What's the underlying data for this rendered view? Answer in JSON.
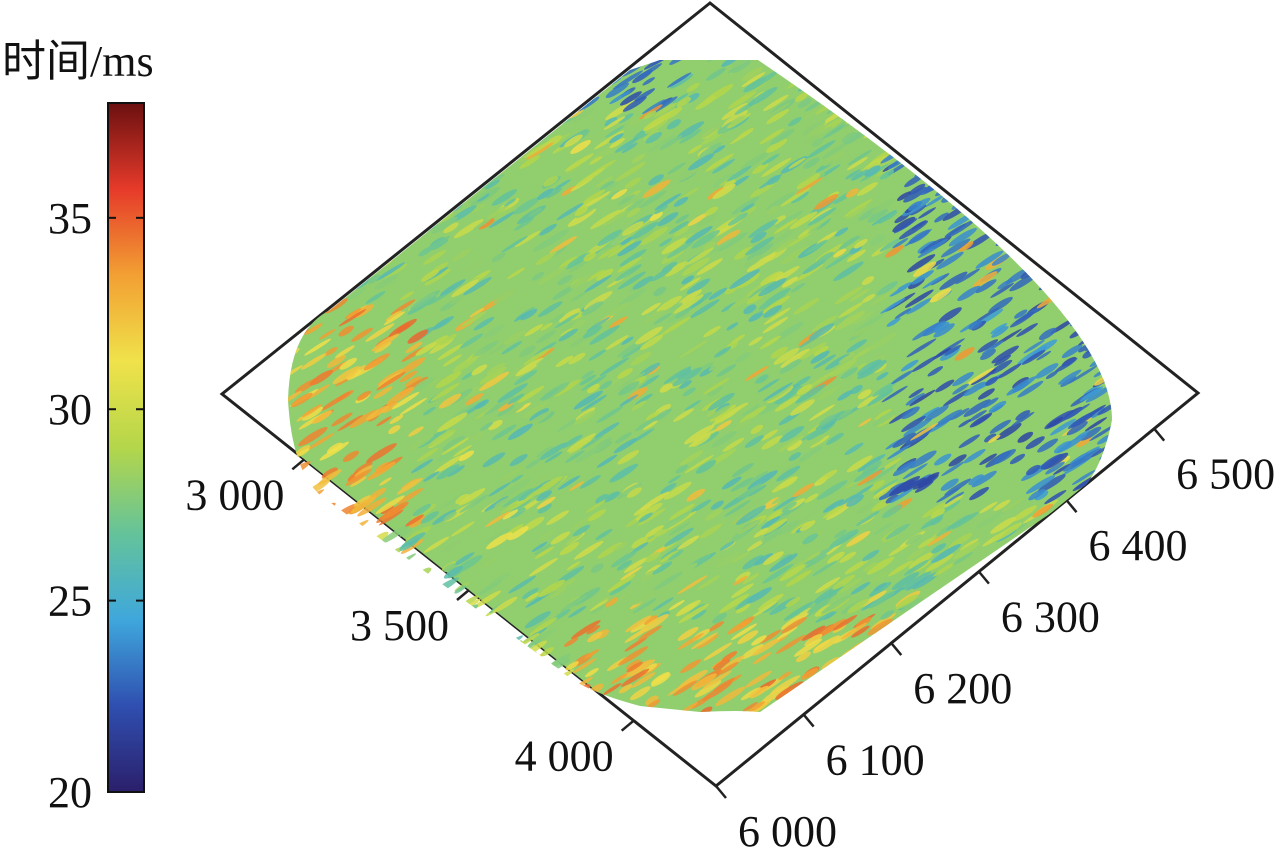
{
  "chart_data": {
    "type": "heatmap",
    "title": "",
    "colorbar": {
      "title": "时间/ms",
      "min": 20,
      "max": 38,
      "ticks": [
        20,
        25,
        30,
        35
      ],
      "tick_labels": [
        "20",
        "25",
        "30",
        "35"
      ],
      "colormap": [
        "#2b1f6b",
        "#2f4fb0",
        "#3fa7dc",
        "#64c39a",
        "#b4d64a",
        "#f0e24a",
        "#f2a033",
        "#e63a2a",
        "#6b1010"
      ]
    },
    "axis_a": {
      "range": [
        2750,
        4250
      ],
      "ticks": [
        3000,
        3500,
        4000
      ],
      "tick_labels": [
        "3 000",
        "3 500",
        "4 000"
      ]
    },
    "axis_b": {
      "range": [
        6000,
        6550
      ],
      "ticks": [
        6000,
        6100,
        6200,
        6300,
        6400,
        6500
      ],
      "tick_labels": [
        "6 000",
        "6 100",
        "6 200",
        "6 300",
        "6 400",
        "6 500"
      ]
    },
    "value_pattern": {
      "typical": 28,
      "west_edge": 33,
      "south_edge": 33,
      "northeast_edge": 23,
      "north_patch": 23
    }
  }
}
